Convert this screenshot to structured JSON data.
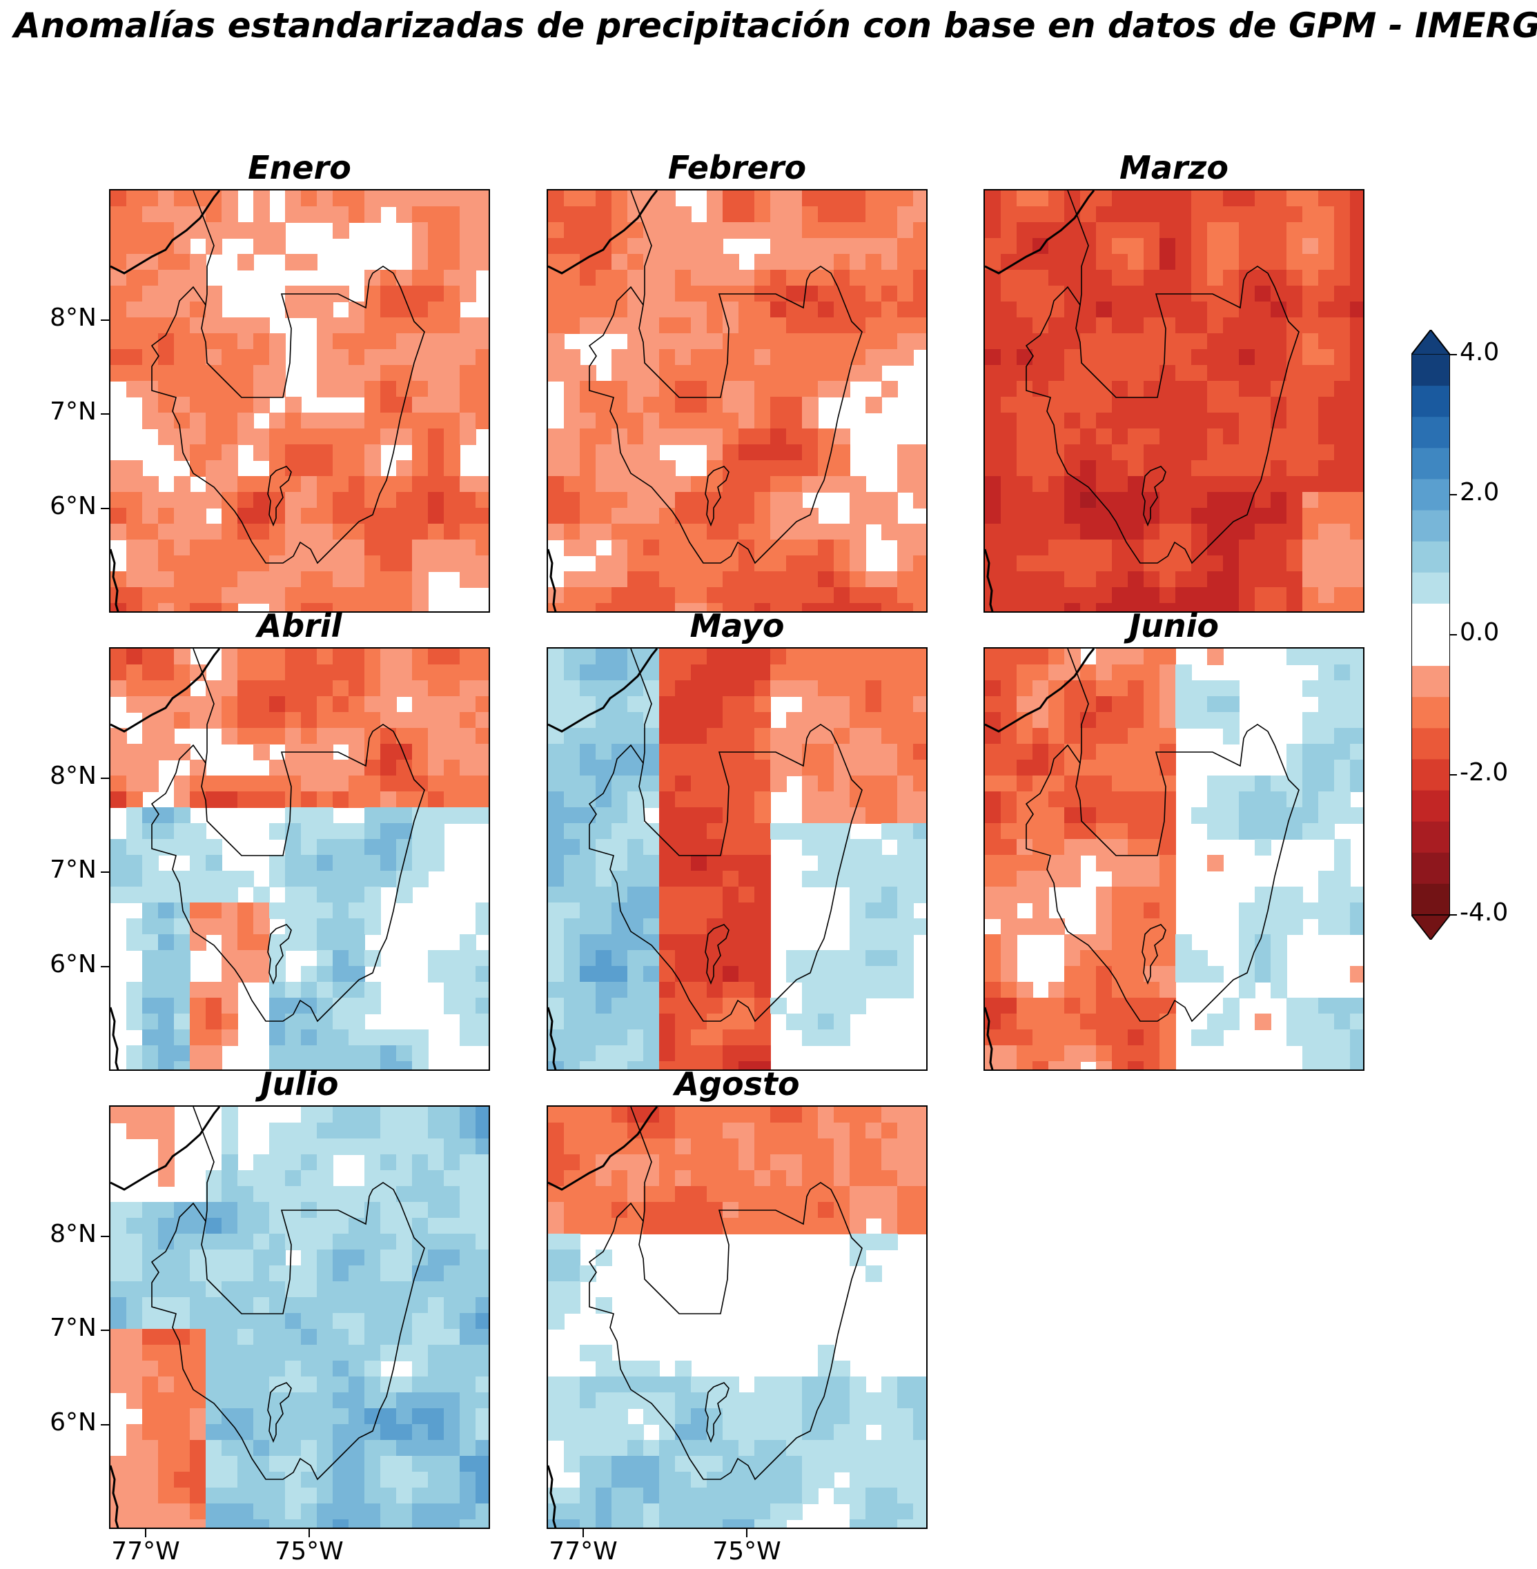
{
  "title": "Anomalías estandarizadas de precipitación con base en datos de GPM - IMERG",
  "panels": [
    {
      "name": "Enero",
      "pattern": "mild-dry",
      "seed": 11
    },
    {
      "name": "Febrero",
      "pattern": "dry",
      "seed": 23
    },
    {
      "name": "Marzo",
      "pattern": "very-dry",
      "seed": 37
    },
    {
      "name": "Abril",
      "pattern": "dry-north-wet-south",
      "seed": 41
    },
    {
      "name": "Mayo",
      "pattern": "wet-west-dry-center",
      "seed": 53
    },
    {
      "name": "Junio",
      "pattern": "mixed",
      "seed": 67
    },
    {
      "name": "Julio",
      "pattern": "wet",
      "seed": 71
    },
    {
      "name": "Agosto",
      "pattern": "dry-north-wet-south-mild",
      "seed": 89
    }
  ],
  "lat_ticks": [
    "8°N",
    "7°N",
    "6°N"
  ],
  "lon_ticks": [
    "77°W",
    "75°W"
  ],
  "colorbar": {
    "min": -4.0,
    "max": 4.0,
    "ticks": [
      "4.0",
      "2.0",
      "0.0",
      "-2.0",
      "-4.0"
    ],
    "colors_positive": [
      "#ffffff",
      "#b7e0ea",
      "#97cde0",
      "#78b6d8",
      "#5a9fcf",
      "#3f87c1",
      "#2a70b2",
      "#1a5a9f",
      "#123f7a"
    ],
    "colors_negative": [
      "#ffffff",
      "#f9997c",
      "#f67a50",
      "#ea5939",
      "#d93d2c",
      "#c22625",
      "#a91d22",
      "#8e171d",
      "#731315"
    ]
  }
}
